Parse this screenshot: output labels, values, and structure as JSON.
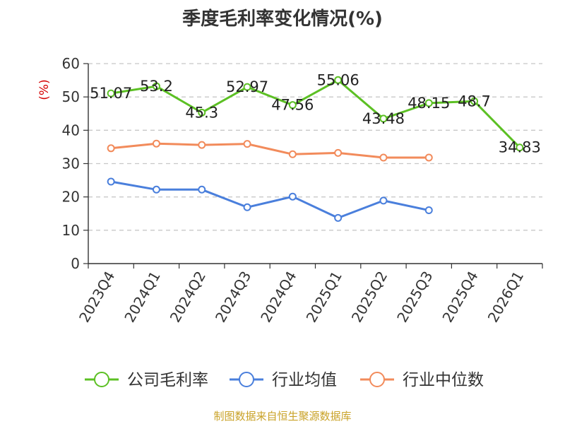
{
  "chart_data": {
    "type": "line",
    "title": "季度毛利率变化情况(%)",
    "ylabel": "(%)",
    "ylim": [
      0,
      60
    ],
    "yticks": [
      0,
      10,
      20,
      30,
      40,
      50,
      60
    ],
    "grid": true,
    "legend_position": "bottom",
    "categories": [
      "2023Q4",
      "2024Q1",
      "2024Q2",
      "2024Q3",
      "2024Q4",
      "2025Q1",
      "2025Q2",
      "2025Q3",
      "2025Q4",
      "2026Q1"
    ],
    "series": [
      {
        "name": "公司毛利率",
        "color": "#5cc024",
        "values": [
          51.07,
          53.2,
          45.3,
          52.97,
          47.56,
          55.06,
          43.48,
          48.15,
          48.7,
          34.83
        ],
        "labels": [
          "51.07",
          "53.2",
          "45.3",
          "52.97",
          "47.56",
          "55.06",
          "43.48",
          "48.15",
          "48.7",
          "34.83"
        ]
      },
      {
        "name": "行业均值",
        "color": "#4a7fdc",
        "values": [
          24.6,
          22.2,
          22.2,
          16.9,
          20.1,
          13.7,
          18.9,
          16.0,
          null,
          null
        ]
      },
      {
        "name": "行业中位数",
        "color": "#f28b5b",
        "values": [
          34.6,
          36.0,
          35.6,
          35.9,
          32.8,
          33.2,
          31.8,
          31.8,
          null,
          null
        ]
      }
    ]
  },
  "source_text": "制图数据来自恒生聚源数据库"
}
